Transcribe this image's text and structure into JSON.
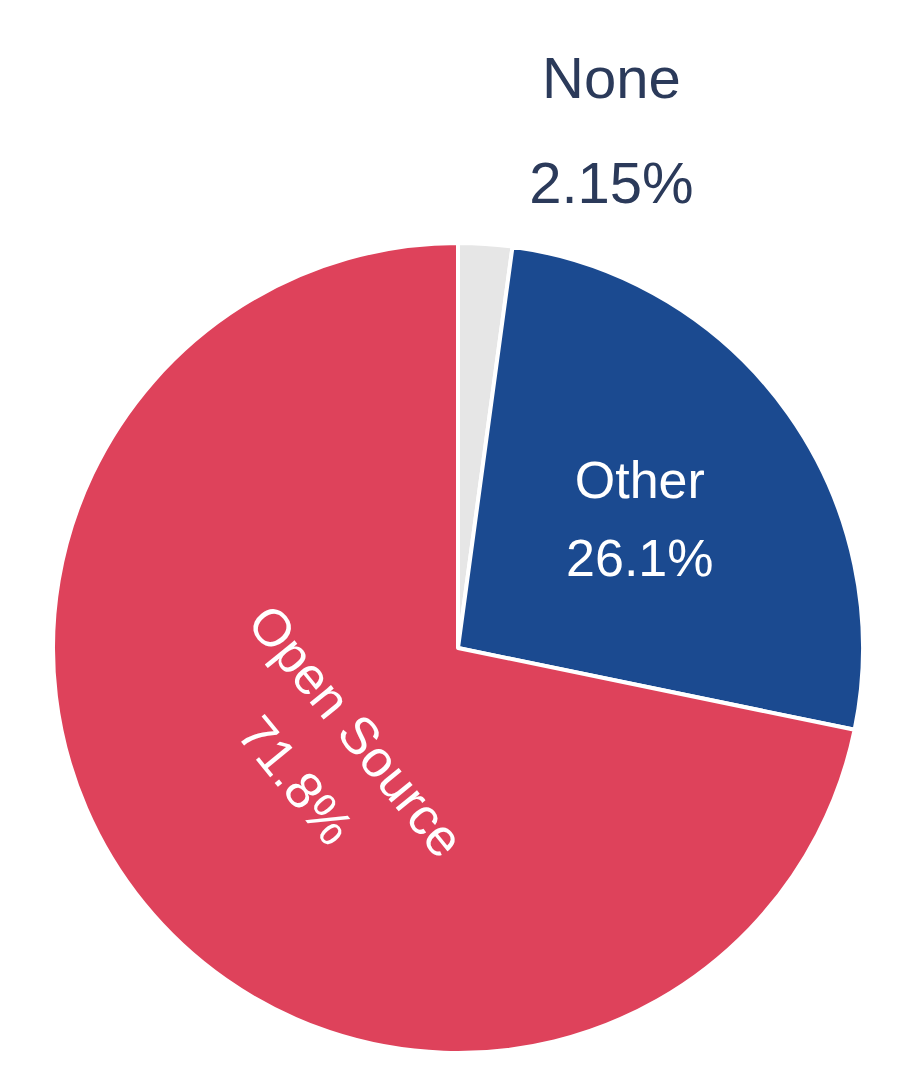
{
  "chart_data": {
    "type": "pie",
    "categories": [
      "None",
      "Other",
      "Open Source"
    ],
    "values": [
      2.15,
      26.1,
      71.8
    ],
    "colors": [
      "#e6e6e6",
      "#1b4a90",
      "#de425b"
    ],
    "value_labels": [
      "2.15%",
      "26.1%",
      "71.8%"
    ]
  }
}
